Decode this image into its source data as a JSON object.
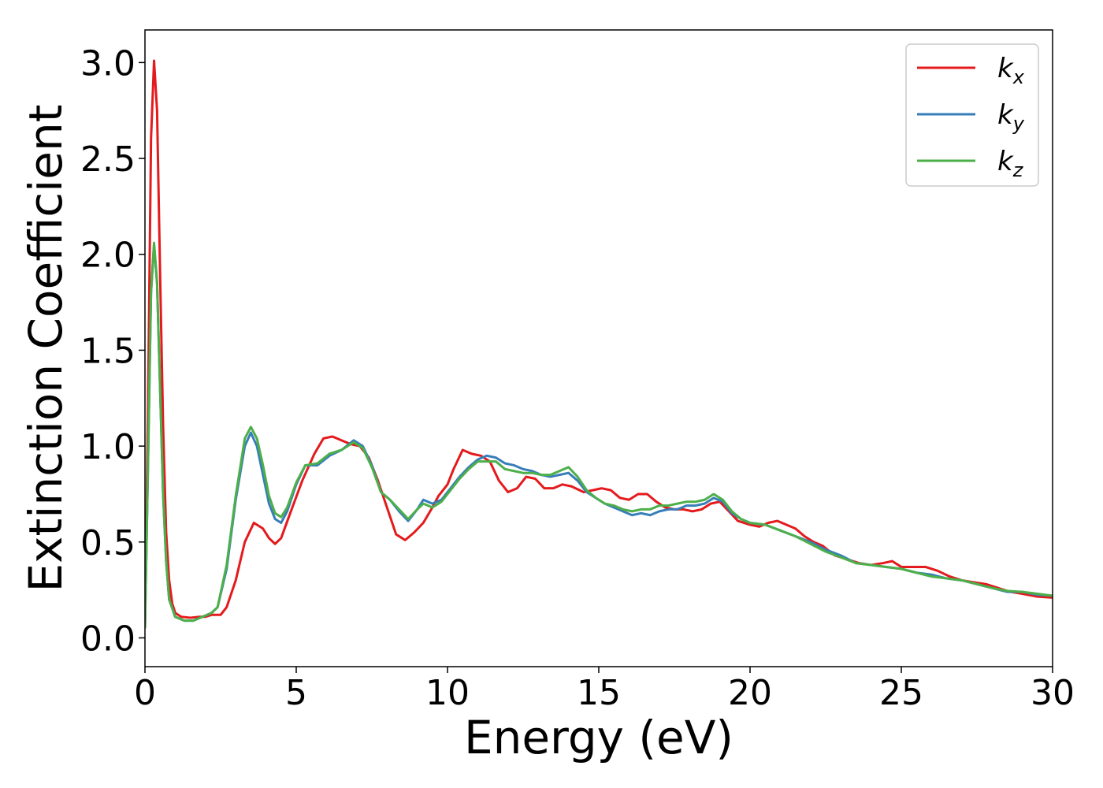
{
  "chart_data": {
    "type": "line",
    "title": "",
    "xlabel": "Energy (eV)",
    "ylabel": "Extinction Coefficient",
    "xlim": [
      0,
      30
    ],
    "ylim": [
      -0.15,
      3.17
    ],
    "xticks": [
      0,
      5,
      10,
      15,
      20,
      25,
      30
    ],
    "yticks": [
      0.0,
      0.5,
      1.0,
      1.5,
      2.0,
      2.5,
      3.0
    ],
    "xtick_labels": [
      "0",
      "5",
      "10",
      "15",
      "20",
      "25",
      "30"
    ],
    "ytick_labels": [
      "0.0",
      "0.5",
      "1.0",
      "1.5",
      "2.0",
      "2.5",
      "3.0"
    ],
    "grid": false,
    "legend_position": "top-right",
    "series": [
      {
        "name": "k_x",
        "label_main": "k",
        "label_sub": "x",
        "color": "#e41a1c",
        "points": [
          [
            0,
            0.05
          ],
          [
            0.1,
            1.2
          ],
          [
            0.2,
            2.6
          ],
          [
            0.3,
            3.01
          ],
          [
            0.4,
            2.75
          ],
          [
            0.5,
            1.9
          ],
          [
            0.6,
            1.1
          ],
          [
            0.7,
            0.55
          ],
          [
            0.8,
            0.3
          ],
          [
            0.9,
            0.18
          ],
          [
            1.0,
            0.13
          ],
          [
            1.2,
            0.11
          ],
          [
            1.5,
            0.105
          ],
          [
            1.8,
            0.11
          ],
          [
            2.0,
            0.11
          ],
          [
            2.2,
            0.12
          ],
          [
            2.5,
            0.12
          ],
          [
            2.7,
            0.16
          ],
          [
            3.0,
            0.3
          ],
          [
            3.3,
            0.5
          ],
          [
            3.6,
            0.6
          ],
          [
            3.9,
            0.57
          ],
          [
            4.1,
            0.52
          ],
          [
            4.3,
            0.49
          ],
          [
            4.5,
            0.52
          ],
          [
            4.8,
            0.65
          ],
          [
            5.2,
            0.82
          ],
          [
            5.6,
            0.96
          ],
          [
            5.9,
            1.04
          ],
          [
            6.2,
            1.05
          ],
          [
            6.5,
            1.03
          ],
          [
            6.8,
            1.01
          ],
          [
            7.1,
            1.0
          ],
          [
            7.4,
            0.94
          ],
          [
            7.7,
            0.82
          ],
          [
            8.0,
            0.68
          ],
          [
            8.3,
            0.54
          ],
          [
            8.6,
            0.51
          ],
          [
            8.9,
            0.55
          ],
          [
            9.2,
            0.6
          ],
          [
            9.5,
            0.68
          ],
          [
            9.7,
            0.74
          ],
          [
            10.0,
            0.8
          ],
          [
            10.2,
            0.88
          ],
          [
            10.5,
            0.98
          ],
          [
            10.8,
            0.96
          ],
          [
            11.1,
            0.95
          ],
          [
            11.4,
            0.92
          ],
          [
            11.7,
            0.82
          ],
          [
            12.0,
            0.76
          ],
          [
            12.3,
            0.78
          ],
          [
            12.6,
            0.84
          ],
          [
            12.9,
            0.83
          ],
          [
            13.2,
            0.78
          ],
          [
            13.5,
            0.78
          ],
          [
            13.8,
            0.8
          ],
          [
            14.1,
            0.79
          ],
          [
            14.5,
            0.76
          ],
          [
            14.8,
            0.77
          ],
          [
            15.1,
            0.78
          ],
          [
            15.4,
            0.77
          ],
          [
            15.7,
            0.73
          ],
          [
            16.0,
            0.72
          ],
          [
            16.3,
            0.75
          ],
          [
            16.6,
            0.75
          ],
          [
            16.9,
            0.71
          ],
          [
            17.2,
            0.68
          ],
          [
            17.5,
            0.67
          ],
          [
            17.8,
            0.67
          ],
          [
            18.1,
            0.66
          ],
          [
            18.4,
            0.67
          ],
          [
            18.7,
            0.7
          ],
          [
            19.0,
            0.71
          ],
          [
            19.3,
            0.66
          ],
          [
            19.6,
            0.61
          ],
          [
            20.0,
            0.59
          ],
          [
            20.3,
            0.58
          ],
          [
            20.6,
            0.6
          ],
          [
            20.9,
            0.61
          ],
          [
            21.2,
            0.59
          ],
          [
            21.5,
            0.57
          ],
          [
            21.8,
            0.53
          ],
          [
            22.1,
            0.5
          ],
          [
            22.4,
            0.48
          ],
          [
            22.8,
            0.43
          ],
          [
            23.2,
            0.41
          ],
          [
            23.6,
            0.39
          ],
          [
            24.0,
            0.38
          ],
          [
            24.4,
            0.39
          ],
          [
            24.7,
            0.4
          ],
          [
            25.0,
            0.37
          ],
          [
            25.4,
            0.37
          ],
          [
            25.8,
            0.37
          ],
          [
            26.2,
            0.35
          ],
          [
            26.6,
            0.32
          ],
          [
            27.0,
            0.3
          ],
          [
            27.4,
            0.29
          ],
          [
            27.8,
            0.28
          ],
          [
            28.2,
            0.26
          ],
          [
            28.6,
            0.24
          ],
          [
            29.0,
            0.23
          ],
          [
            29.5,
            0.215
          ],
          [
            30.0,
            0.21
          ]
        ]
      },
      {
        "name": "k_y",
        "label_main": "k",
        "label_sub": "y",
        "color": "#377eb8",
        "points": [
          [
            0,
            0.05
          ],
          [
            0.1,
            0.9
          ],
          [
            0.2,
            1.8
          ],
          [
            0.3,
            2.05
          ],
          [
            0.4,
            1.85
          ],
          [
            0.5,
            1.3
          ],
          [
            0.6,
            0.75
          ],
          [
            0.7,
            0.4
          ],
          [
            0.8,
            0.2
          ],
          [
            1.0,
            0.11
          ],
          [
            1.3,
            0.09
          ],
          [
            1.6,
            0.09
          ],
          [
            1.9,
            0.11
          ],
          [
            2.2,
            0.13
          ],
          [
            2.4,
            0.16
          ],
          [
            2.7,
            0.36
          ],
          [
            3.0,
            0.72
          ],
          [
            3.3,
            1.0
          ],
          [
            3.5,
            1.07
          ],
          [
            3.7,
            1.0
          ],
          [
            3.9,
            0.85
          ],
          [
            4.1,
            0.7
          ],
          [
            4.3,
            0.62
          ],
          [
            4.5,
            0.6
          ],
          [
            4.7,
            0.66
          ],
          [
            5.0,
            0.8
          ],
          [
            5.3,
            0.9
          ],
          [
            5.7,
            0.9
          ],
          [
            6.1,
            0.95
          ],
          [
            6.5,
            0.98
          ],
          [
            6.9,
            1.03
          ],
          [
            7.2,
            1.0
          ],
          [
            7.5,
            0.9
          ],
          [
            7.8,
            0.76
          ],
          [
            8.1,
            0.72
          ],
          [
            8.4,
            0.66
          ],
          [
            8.7,
            0.61
          ],
          [
            9.0,
            0.67
          ],
          [
            9.2,
            0.72
          ],
          [
            9.5,
            0.7
          ],
          [
            9.8,
            0.72
          ],
          [
            10.1,
            0.78
          ],
          [
            10.4,
            0.84
          ],
          [
            10.7,
            0.89
          ],
          [
            11.0,
            0.93
          ],
          [
            11.3,
            0.95
          ],
          [
            11.6,
            0.94
          ],
          [
            11.9,
            0.91
          ],
          [
            12.2,
            0.9
          ],
          [
            12.5,
            0.88
          ],
          [
            12.8,
            0.87
          ],
          [
            13.1,
            0.85
          ],
          [
            13.4,
            0.84
          ],
          [
            13.7,
            0.85
          ],
          [
            14.0,
            0.86
          ],
          [
            14.3,
            0.82
          ],
          [
            14.6,
            0.76
          ],
          [
            14.9,
            0.73
          ],
          [
            15.2,
            0.7
          ],
          [
            15.5,
            0.68
          ],
          [
            15.8,
            0.66
          ],
          [
            16.1,
            0.64
          ],
          [
            16.4,
            0.65
          ],
          [
            16.7,
            0.64
          ],
          [
            17.0,
            0.66
          ],
          [
            17.3,
            0.67
          ],
          [
            17.6,
            0.67
          ],
          [
            17.9,
            0.69
          ],
          [
            18.2,
            0.69
          ],
          [
            18.5,
            0.7
          ],
          [
            18.8,
            0.73
          ],
          [
            19.1,
            0.71
          ],
          [
            19.4,
            0.65
          ],
          [
            19.7,
            0.62
          ],
          [
            20.0,
            0.6
          ],
          [
            20.5,
            0.59
          ],
          [
            21.0,
            0.56
          ],
          [
            21.5,
            0.53
          ],
          [
            22.0,
            0.5
          ],
          [
            22.5,
            0.46
          ],
          [
            23.0,
            0.43
          ],
          [
            23.5,
            0.39
          ],
          [
            24.0,
            0.38
          ],
          [
            24.5,
            0.37
          ],
          [
            25.0,
            0.36
          ],
          [
            25.5,
            0.34
          ],
          [
            26.0,
            0.33
          ],
          [
            26.5,
            0.31
          ],
          [
            27.0,
            0.3
          ],
          [
            27.5,
            0.28
          ],
          [
            28.0,
            0.26
          ],
          [
            28.5,
            0.24
          ],
          [
            29.0,
            0.24
          ],
          [
            29.5,
            0.225
          ],
          [
            30.0,
            0.22
          ]
        ]
      },
      {
        "name": "k_z",
        "label_main": "k",
        "label_sub": "z",
        "color": "#4daf4a",
        "points": [
          [
            0,
            0.05
          ],
          [
            0.1,
            0.9
          ],
          [
            0.2,
            1.8
          ],
          [
            0.3,
            2.06
          ],
          [
            0.4,
            1.85
          ],
          [
            0.5,
            1.3
          ],
          [
            0.6,
            0.75
          ],
          [
            0.7,
            0.4
          ],
          [
            0.8,
            0.2
          ],
          [
            1.0,
            0.11
          ],
          [
            1.3,
            0.09
          ],
          [
            1.6,
            0.09
          ],
          [
            1.9,
            0.11
          ],
          [
            2.2,
            0.13
          ],
          [
            2.4,
            0.16
          ],
          [
            2.7,
            0.38
          ],
          [
            3.0,
            0.74
          ],
          [
            3.3,
            1.04
          ],
          [
            3.5,
            1.1
          ],
          [
            3.7,
            1.04
          ],
          [
            3.9,
            0.9
          ],
          [
            4.1,
            0.74
          ],
          [
            4.3,
            0.65
          ],
          [
            4.5,
            0.63
          ],
          [
            4.7,
            0.68
          ],
          [
            5.0,
            0.81
          ],
          [
            5.3,
            0.9
          ],
          [
            5.7,
            0.91
          ],
          [
            6.1,
            0.96
          ],
          [
            6.5,
            0.98
          ],
          [
            6.9,
            1.02
          ],
          [
            7.2,
            0.99
          ],
          [
            7.5,
            0.89
          ],
          [
            7.8,
            0.76
          ],
          [
            8.1,
            0.72
          ],
          [
            8.4,
            0.67
          ],
          [
            8.7,
            0.62
          ],
          [
            9.0,
            0.67
          ],
          [
            9.2,
            0.7
          ],
          [
            9.5,
            0.68
          ],
          [
            9.8,
            0.71
          ],
          [
            10.1,
            0.77
          ],
          [
            10.4,
            0.83
          ],
          [
            10.7,
            0.88
          ],
          [
            11.0,
            0.92
          ],
          [
            11.3,
            0.92
          ],
          [
            11.6,
            0.92
          ],
          [
            11.9,
            0.88
          ],
          [
            12.2,
            0.87
          ],
          [
            12.5,
            0.86
          ],
          [
            12.8,
            0.86
          ],
          [
            13.1,
            0.85
          ],
          [
            13.4,
            0.85
          ],
          [
            13.7,
            0.87
          ],
          [
            14.0,
            0.89
          ],
          [
            14.3,
            0.84
          ],
          [
            14.6,
            0.77
          ],
          [
            14.9,
            0.73
          ],
          [
            15.2,
            0.7
          ],
          [
            15.5,
            0.69
          ],
          [
            15.8,
            0.67
          ],
          [
            16.1,
            0.66
          ],
          [
            16.4,
            0.67
          ],
          [
            16.7,
            0.67
          ],
          [
            17.0,
            0.69
          ],
          [
            17.3,
            0.69
          ],
          [
            17.6,
            0.7
          ],
          [
            17.9,
            0.71
          ],
          [
            18.2,
            0.71
          ],
          [
            18.5,
            0.72
          ],
          [
            18.8,
            0.75
          ],
          [
            19.1,
            0.72
          ],
          [
            19.4,
            0.66
          ],
          [
            19.7,
            0.62
          ],
          [
            20.0,
            0.6
          ],
          [
            20.5,
            0.59
          ],
          [
            21.0,
            0.56
          ],
          [
            21.5,
            0.53
          ],
          [
            22.0,
            0.49
          ],
          [
            22.5,
            0.45
          ],
          [
            23.0,
            0.42
          ],
          [
            23.5,
            0.39
          ],
          [
            24.0,
            0.38
          ],
          [
            24.5,
            0.37
          ],
          [
            25.0,
            0.36
          ],
          [
            25.5,
            0.34
          ],
          [
            26.0,
            0.32
          ],
          [
            26.5,
            0.31
          ],
          [
            27.0,
            0.3
          ],
          [
            27.5,
            0.28
          ],
          [
            28.0,
            0.26
          ],
          [
            28.5,
            0.245
          ],
          [
            29.0,
            0.24
          ],
          [
            29.5,
            0.23
          ],
          [
            30.0,
            0.22
          ]
        ]
      }
    ]
  }
}
